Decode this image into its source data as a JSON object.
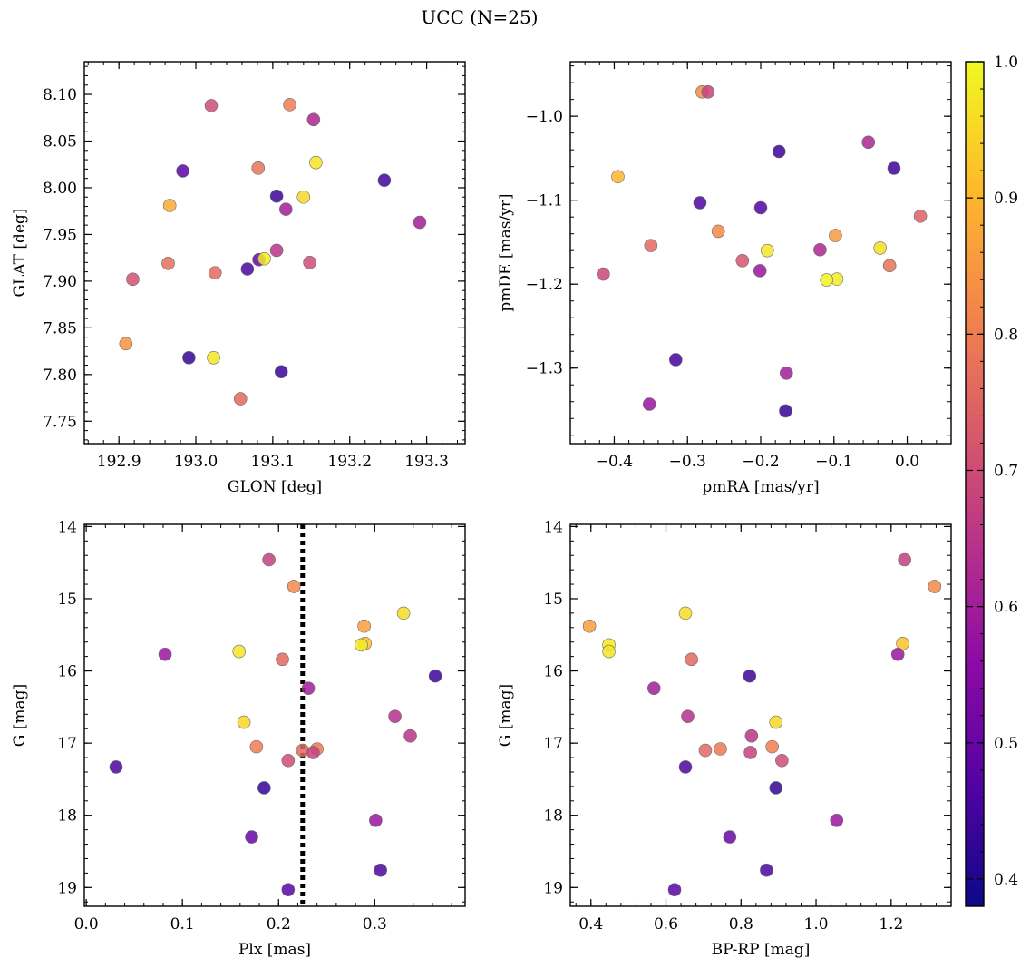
{
  "figure": {
    "title": "UCC (N=25)"
  },
  "colormap": {
    "name": "plasma",
    "vmin": 0.38,
    "vmax": 1.0,
    "ticks": [
      0.4,
      0.5,
      0.6,
      0.7,
      0.8,
      0.9,
      1.0
    ],
    "tick_labels": [
      "0.4",
      "0.5",
      "0.6",
      "0.7",
      "0.8",
      "0.9",
      "1.0"
    ],
    "stops": [
      "#0d0887",
      "#5302a3",
      "#8b0aa5",
      "#b83289",
      "#db5c68",
      "#f48849",
      "#febc2a",
      "#f0f921"
    ]
  },
  "chart_data": [
    {
      "type": "scatter",
      "name": "glon-glat",
      "xlabel": "GLON [deg]",
      "ylabel": "GLAT [deg]",
      "xlim": [
        192.855,
        193.35
      ],
      "ylim": [
        7.726,
        8.135
      ],
      "y_inverted": false,
      "xticks": [
        192.9,
        193.0,
        193.1,
        193.2,
        193.3
      ],
      "xtick_labels": [
        "192.9",
        "193.0",
        "193.1",
        "193.2",
        "193.3"
      ],
      "yticks": [
        7.75,
        7.8,
        7.85,
        7.9,
        7.95,
        8.0,
        8.05,
        8.1
      ],
      "ytick_labels": [
        "7.75",
        "7.80",
        "7.85",
        "7.90",
        "7.95",
        "8.00",
        "8.05",
        "8.10"
      ],
      "points": [
        {
          "x": 193.02,
          "y": 8.088,
          "c": 0.7
        },
        {
          "x": 193.122,
          "y": 8.089,
          "c": 0.8
        },
        {
          "x": 193.153,
          "y": 8.073,
          "c": 0.62
        },
        {
          "x": 193.156,
          "y": 8.027,
          "c": 0.97
        },
        {
          "x": 192.983,
          "y": 8.018,
          "c": 0.48
        },
        {
          "x": 193.081,
          "y": 8.021,
          "c": 0.78
        },
        {
          "x": 193.245,
          "y": 8.008,
          "c": 0.45
        },
        {
          "x": 193.105,
          "y": 7.991,
          "c": 0.44
        },
        {
          "x": 193.14,
          "y": 7.99,
          "c": 0.95
        },
        {
          "x": 192.966,
          "y": 7.981,
          "c": 0.88
        },
        {
          "x": 193.117,
          "y": 7.977,
          "c": 0.6
        },
        {
          "x": 193.291,
          "y": 7.963,
          "c": 0.6
        },
        {
          "x": 193.105,
          "y": 7.933,
          "c": 0.65
        },
        {
          "x": 193.082,
          "y": 7.923,
          "c": 0.5
        },
        {
          "x": 193.089,
          "y": 7.924,
          "c": 0.98
        },
        {
          "x": 192.964,
          "y": 7.919,
          "c": 0.77
        },
        {
          "x": 193.148,
          "y": 7.92,
          "c": 0.7
        },
        {
          "x": 193.067,
          "y": 7.913,
          "c": 0.46
        },
        {
          "x": 193.025,
          "y": 7.909,
          "c": 0.76
        },
        {
          "x": 192.918,
          "y": 7.902,
          "c": 0.71
        },
        {
          "x": 192.909,
          "y": 7.833,
          "c": 0.84
        },
        {
          "x": 192.991,
          "y": 7.818,
          "c": 0.43
        },
        {
          "x": 193.023,
          "y": 7.818,
          "c": 0.97
        },
        {
          "x": 193.111,
          "y": 7.803,
          "c": 0.44
        },
        {
          "x": 193.058,
          "y": 7.774,
          "c": 0.76
        }
      ]
    },
    {
      "type": "scatter",
      "name": "pmra-pmde",
      "xlabel": "pmRA [mas/yr]",
      "ylabel": "pmDE [mas/yr]",
      "xlim": [
        -0.46,
        0.06
      ],
      "ylim": [
        -1.39,
        -0.935
      ],
      "y_inverted": false,
      "xticks": [
        -0.4,
        -0.3,
        -0.2,
        -0.1,
        0.0
      ],
      "xtick_labels": [
        "−0.4",
        "−0.3",
        "−0.2",
        "−0.1",
        "0.0"
      ],
      "yticks": [
        -1.3,
        -1.2,
        -1.1,
        -1.0
      ],
      "ytick_labels": [
        "−1.3",
        "−1.2",
        "−1.1",
        "−1.0"
      ],
      "points": [
        {
          "x": -0.28,
          "y": -0.971,
          "c": 0.82
        },
        {
          "x": -0.272,
          "y": -0.971,
          "c": 0.68
        },
        {
          "x": -0.053,
          "y": -1.031,
          "c": 0.62
        },
        {
          "x": -0.175,
          "y": -1.042,
          "c": 0.44
        },
        {
          "x": -0.018,
          "y": -1.062,
          "c": 0.44
        },
        {
          "x": -0.395,
          "y": -1.072,
          "c": 0.9
        },
        {
          "x": -0.283,
          "y": -1.103,
          "c": 0.46
        },
        {
          "x": -0.2,
          "y": -1.109,
          "c": 0.47
        },
        {
          "x": 0.018,
          "y": -1.119,
          "c": 0.74
        },
        {
          "x": -0.258,
          "y": -1.137,
          "c": 0.82
        },
        {
          "x": -0.098,
          "y": -1.142,
          "c": 0.85
        },
        {
          "x": -0.35,
          "y": -1.154,
          "c": 0.76
        },
        {
          "x": -0.119,
          "y": -1.159,
          "c": 0.62
        },
        {
          "x": -0.037,
          "y": -1.157,
          "c": 0.96
        },
        {
          "x": -0.191,
          "y": -1.16,
          "c": 0.97
        },
        {
          "x": -0.225,
          "y": -1.172,
          "c": 0.72
        },
        {
          "x": -0.024,
          "y": -1.178,
          "c": 0.78
        },
        {
          "x": -0.201,
          "y": -1.184,
          "c": 0.58
        },
        {
          "x": -0.415,
          "y": -1.188,
          "c": 0.69
        },
        {
          "x": -0.096,
          "y": -1.194,
          "c": 0.98
        },
        {
          "x": -0.11,
          "y": -1.195,
          "c": 0.99
        },
        {
          "x": -0.316,
          "y": -1.29,
          "c": 0.45
        },
        {
          "x": -0.165,
          "y": -1.306,
          "c": 0.6
        },
        {
          "x": -0.352,
          "y": -1.343,
          "c": 0.58
        },
        {
          "x": -0.166,
          "y": -1.351,
          "c": 0.43
        }
      ]
    },
    {
      "type": "scatter",
      "name": "plx-g",
      "xlabel": "Plx [mas]",
      "ylabel": "G [mag]",
      "xlim": [
        -0.002,
        0.394
      ],
      "ylim": [
        19.26,
        13.97
      ],
      "y_inverted": true,
      "xticks": [
        0.0,
        0.1,
        0.2,
        0.3
      ],
      "xtick_labels": [
        "0.0",
        "0.1",
        "0.2",
        "0.3"
      ],
      "yticks": [
        14,
        15,
        16,
        17,
        18,
        19
      ],
      "ytick_labels": [
        "14",
        "15",
        "16",
        "17",
        "18",
        "19"
      ],
      "vline": {
        "x": 0.225,
        "style": "dotted",
        "color": "#000000"
      },
      "points": [
        {
          "x": 0.19,
          "y": 14.46,
          "c": 0.67
        },
        {
          "x": 0.216,
          "y": 14.83,
          "c": 0.82
        },
        {
          "x": 0.33,
          "y": 15.2,
          "c": 0.96
        },
        {
          "x": 0.289,
          "y": 15.38,
          "c": 0.86
        },
        {
          "x": 0.29,
          "y": 15.62,
          "c": 0.92
        },
        {
          "x": 0.286,
          "y": 15.64,
          "c": 0.98
        },
        {
          "x": 0.159,
          "y": 15.73,
          "c": 0.97
        },
        {
          "x": 0.082,
          "y": 15.77,
          "c": 0.58
        },
        {
          "x": 0.204,
          "y": 15.84,
          "c": 0.76
        },
        {
          "x": 0.363,
          "y": 16.07,
          "c": 0.44
        },
        {
          "x": 0.231,
          "y": 16.24,
          "c": 0.6
        },
        {
          "x": 0.321,
          "y": 16.63,
          "c": 0.64
        },
        {
          "x": 0.164,
          "y": 16.71,
          "c": 0.95
        },
        {
          "x": 0.337,
          "y": 16.9,
          "c": 0.65
        },
        {
          "x": 0.177,
          "y": 17.05,
          "c": 0.8
        },
        {
          "x": 0.24,
          "y": 17.08,
          "c": 0.79
        },
        {
          "x": 0.225,
          "y": 17.1,
          "c": 0.76
        },
        {
          "x": 0.236,
          "y": 17.13,
          "c": 0.68
        },
        {
          "x": 0.21,
          "y": 17.24,
          "c": 0.7
        },
        {
          "x": 0.031,
          "y": 17.33,
          "c": 0.46
        },
        {
          "x": 0.185,
          "y": 17.62,
          "c": 0.43
        },
        {
          "x": 0.301,
          "y": 18.07,
          "c": 0.58
        },
        {
          "x": 0.172,
          "y": 18.3,
          "c": 0.5
        },
        {
          "x": 0.306,
          "y": 18.76,
          "c": 0.46
        },
        {
          "x": 0.21,
          "y": 19.03,
          "c": 0.48
        }
      ]
    },
    {
      "type": "scatter",
      "name": "bprp-g",
      "xlabel": "BP-RP [mag]",
      "ylabel": "G [mag]",
      "xlim": [
        0.345,
        1.36
      ],
      "ylim": [
        19.26,
        13.97
      ],
      "y_inverted": true,
      "xticks": [
        0.4,
        0.6,
        0.8,
        1.0,
        1.2
      ],
      "xtick_labels": [
        "0.4",
        "0.6",
        "0.8",
        "1.0",
        "1.2"
      ],
      "yticks": [
        14,
        15,
        16,
        17,
        18,
        19
      ],
      "ytick_labels": [
        "14",
        "15",
        "16",
        "17",
        "18",
        "19"
      ],
      "points": [
        {
          "x": 1.236,
          "y": 14.46,
          "c": 0.67
        },
        {
          "x": 1.316,
          "y": 14.83,
          "c": 0.82
        },
        {
          "x": 0.652,
          "y": 15.2,
          "c": 0.96
        },
        {
          "x": 0.396,
          "y": 15.38,
          "c": 0.86
        },
        {
          "x": 1.231,
          "y": 15.62,
          "c": 0.92
        },
        {
          "x": 0.448,
          "y": 15.64,
          "c": 0.98
        },
        {
          "x": 0.448,
          "y": 15.73,
          "c": 0.97
        },
        {
          "x": 1.218,
          "y": 15.77,
          "c": 0.58
        },
        {
          "x": 0.668,
          "y": 15.84,
          "c": 0.76
        },
        {
          "x": 0.823,
          "y": 16.07,
          "c": 0.44
        },
        {
          "x": 0.568,
          "y": 16.24,
          "c": 0.6
        },
        {
          "x": 0.658,
          "y": 16.63,
          "c": 0.64
        },
        {
          "x": 0.893,
          "y": 16.71,
          "c": 0.95
        },
        {
          "x": 0.828,
          "y": 16.9,
          "c": 0.65
        },
        {
          "x": 0.883,
          "y": 17.05,
          "c": 0.8
        },
        {
          "x": 0.745,
          "y": 17.08,
          "c": 0.79
        },
        {
          "x": 0.705,
          "y": 17.1,
          "c": 0.76
        },
        {
          "x": 0.825,
          "y": 17.13,
          "c": 0.68
        },
        {
          "x": 0.909,
          "y": 17.24,
          "c": 0.7
        },
        {
          "x": 0.652,
          "y": 17.33,
          "c": 0.46
        },
        {
          "x": 0.893,
          "y": 17.62,
          "c": 0.43
        },
        {
          "x": 1.055,
          "y": 18.07,
          "c": 0.58
        },
        {
          "x": 0.77,
          "y": 18.3,
          "c": 0.5
        },
        {
          "x": 0.868,
          "y": 18.76,
          "c": 0.46
        },
        {
          "x": 0.623,
          "y": 19.03,
          "c": 0.48
        }
      ]
    }
  ]
}
